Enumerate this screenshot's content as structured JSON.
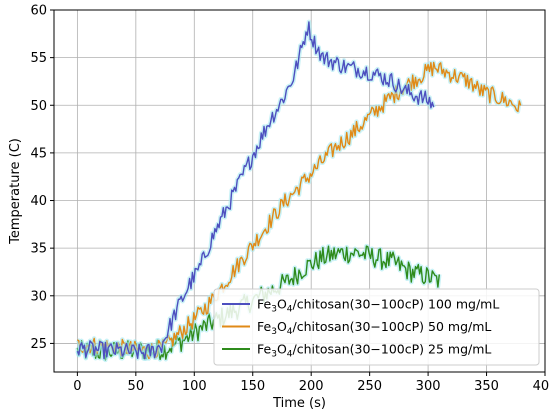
{
  "chart_data": {
    "type": "line",
    "xlabel": "Time (s)",
    "ylabel": "Temperature (C)",
    "xlim": [
      -20,
      400
    ],
    "ylim": [
      22,
      60
    ],
    "xticks": [
      0,
      50,
      100,
      150,
      200,
      250,
      300,
      350,
      400
    ],
    "yticks": [
      25,
      30,
      35,
      40,
      45,
      50,
      55,
      60
    ],
    "grid": true,
    "legend_position": "lower-right",
    "series": [
      {
        "name": "Fe3O4/chitosan(30−100cP) 100 mg/mL",
        "color": "#4d4fbf",
        "points": [
          [
            0,
            24.5
          ],
          [
            20,
            24.3
          ],
          [
            40,
            24.2
          ],
          [
            55,
            24.0
          ],
          [
            65,
            24.2
          ],
          [
            72,
            24.8
          ],
          [
            78,
            26.5
          ],
          [
            85,
            28.5
          ],
          [
            95,
            31
          ],
          [
            105,
            33
          ],
          [
            115,
            36
          ],
          [
            125,
            38.5
          ],
          [
            135,
            41
          ],
          [
            145,
            43.5
          ],
          [
            155,
            46
          ],
          [
            165,
            48.5
          ],
          [
            175,
            50.5
          ],
          [
            185,
            53
          ],
          [
            192,
            56
          ],
          [
            197,
            58.3
          ],
          [
            203,
            56.5
          ],
          [
            210,
            55
          ],
          [
            220,
            54.5
          ],
          [
            230,
            54
          ],
          [
            240,
            53.8
          ],
          [
            250,
            53.5
          ],
          [
            260,
            53
          ],
          [
            270,
            52.5
          ],
          [
            280,
            51.5
          ],
          [
            290,
            51
          ],
          [
            300,
            50.5
          ],
          [
            305,
            50
          ]
        ]
      },
      {
        "name": "Fe3O4/chitosan(30−100cP) 50 mg/mL",
        "color": "#e08a17",
        "points": [
          [
            0,
            24.8
          ],
          [
            20,
            24.8
          ],
          [
            40,
            24.5
          ],
          [
            60,
            24.2
          ],
          [
            75,
            24.6
          ],
          [
            85,
            25.8
          ],
          [
            100,
            27.5
          ],
          [
            115,
            29.5
          ],
          [
            130,
            32
          ],
          [
            145,
            34.5
          ],
          [
            160,
            37
          ],
          [
            175,
            39.5
          ],
          [
            190,
            41.5
          ],
          [
            205,
            43.5
          ],
          [
            220,
            45.5
          ],
          [
            235,
            47
          ],
          [
            250,
            48.8
          ],
          [
            265,
            50.5
          ],
          [
            280,
            52
          ],
          [
            295,
            53.2
          ],
          [
            305,
            54
          ],
          [
            315,
            53.5
          ],
          [
            325,
            53
          ],
          [
            335,
            52.5
          ],
          [
            345,
            51.5
          ],
          [
            360,
            50.8
          ],
          [
            372,
            50.2
          ],
          [
            380,
            49.5
          ]
        ]
      },
      {
        "name": "Fe3O4/chitosan(30−100cP) 25 mg/mL",
        "color": "#2e8b1c",
        "points": [
          [
            0,
            24.2
          ],
          [
            20,
            24.1
          ],
          [
            40,
            24.2
          ],
          [
            60,
            24.3
          ],
          [
            75,
            24.4
          ],
          [
            90,
            25.3
          ],
          [
            105,
            26.5
          ],
          [
            120,
            27.5
          ],
          [
            135,
            28.5
          ],
          [
            150,
            29.5
          ],
          [
            165,
            30.5
          ],
          [
            180,
            31.5
          ],
          [
            195,
            33
          ],
          [
            210,
            34
          ],
          [
            225,
            34.5
          ],
          [
            240,
            34.5
          ],
          [
            255,
            34
          ],
          [
            270,
            33.5
          ],
          [
            285,
            32.5
          ],
          [
            300,
            32
          ],
          [
            310,
            31.5
          ]
        ]
      }
    ]
  },
  "legend": {
    "items": [
      {
        "prefix": "Fe",
        "sub": "3",
        "mid": "O",
        "sub2": "4",
        "suffix": "/chitosan(30−100cP) 100 mg/mL"
      },
      {
        "prefix": "Fe",
        "sub": "3",
        "mid": "O",
        "sub2": "4",
        "suffix": "/chitosan(30−100cP) 50 mg/mL"
      },
      {
        "prefix": "Fe",
        "sub": "3",
        "mid": "O",
        "sub2": "4",
        "suffix": "/chitosan(30−100cP) 25 mg/mL"
      }
    ]
  }
}
